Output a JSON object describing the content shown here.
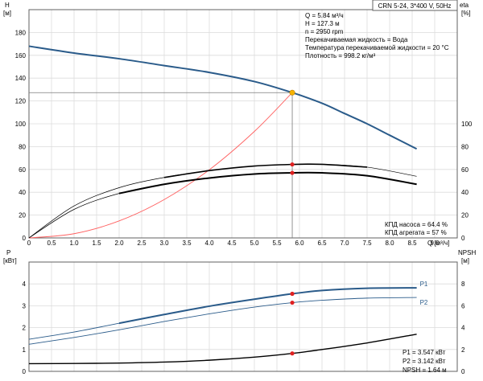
{
  "title_box": "CRN 5-24, 3*400 V, 50Hz",
  "colors": {
    "frame": "#606060",
    "pump_head": "#2a5b8a",
    "system_curve": "#ff6060",
    "eta": "#000000",
    "power_p1": "#2a5b8a",
    "power_p2": "#2a5b8a",
    "npsh": "#000000",
    "op_point_head": "#f5b400",
    "op_point": "#e02020"
  },
  "top_info": [
    "Q = 5.84 м³/ч",
    "H = 127.3 м",
    "n = 2950 rpm",
    "Перекачиваемая жидкость = Вода",
    "Температура перекачиваемой жидкости = 20 °C",
    "Плотность = 998.2 кг/м³"
  ],
  "eff_info": [
    "КПД насоса = 64.4 %",
    "КПД агрегата = 57 %"
  ],
  "bottom_info": [
    "P1 = 3.547 кВт",
    "P2 = 3.142 кВт",
    "NPSH = 1.64 м"
  ],
  "chart_data": [
    {
      "type": "line",
      "name": "head-efficiency",
      "xlabel": "Q [м³/ч]",
      "ylabel_left": "H [м]",
      "ylabel_right": "eta [%]",
      "xlim": [
        0,
        9.5
      ],
      "ylim_left": [
        0,
        200
      ],
      "ylim_right": [
        0,
        200
      ],
      "x_ticks": [
        "0",
        "0.5",
        "1.0",
        "1.5",
        "2.0",
        "2.5",
        "3.0",
        "3.5",
        "4.0",
        "4.5",
        "5.0",
        "5.5",
        "6.0",
        "6.5",
        "7.0",
        "7.5",
        "8.0",
        "8.5",
        "9.0"
      ],
      "y_ticks_left": [
        "0",
        "20",
        "40",
        "60",
        "80",
        "100",
        "120",
        "140",
        "160",
        "180"
      ],
      "y_ticks_right": [
        "0",
        "20",
        "40",
        "60",
        "80",
        "100"
      ],
      "grid": true,
      "series": [
        {
          "key": "head",
          "axis": "left",
          "x": [
            0,
            1,
            2,
            3,
            4,
            5,
            5.84,
            6.5,
            7,
            7.5,
            8,
            8.6
          ],
          "y": [
            168,
            162,
            157,
            151,
            145,
            137,
            127.3,
            118,
            109,
            100,
            90,
            78
          ]
        },
        {
          "key": "system",
          "axis": "left",
          "x": [
            0,
            1,
            2,
            3,
            4,
            5,
            5.84
          ],
          "y": [
            0,
            3.7,
            14.9,
            33.6,
            59.7,
            93.3,
            127.3
          ]
        },
        {
          "key": "eta_pump",
          "axis": "right",
          "x": [
            0,
            1,
            2,
            3,
            4,
            5,
            5.84,
            6.5,
            7.5,
            8.6
          ],
          "y": [
            0,
            28,
            44,
            53,
            59,
            63,
            64.4,
            64.5,
            62,
            54
          ]
        },
        {
          "key": "eta_unit",
          "axis": "right",
          "x": [
            0,
            1,
            2,
            3,
            4,
            5,
            5.84,
            6.5,
            7.5,
            8.6
          ],
          "y": [
            0,
            25,
            39,
            47,
            52.5,
            56,
            57,
            57,
            54.5,
            47
          ]
        }
      ],
      "points": [
        {
          "key": "op_head",
          "axis": "left",
          "x": 5.84,
          "y": 127.3
        },
        {
          "key": "op_eta_pump",
          "axis": "right",
          "x": 5.84,
          "y": 64.4
        },
        {
          "key": "op_eta_unit",
          "axis": "right",
          "x": 5.84,
          "y": 57
        }
      ]
    },
    {
      "type": "line",
      "name": "power-npsh",
      "ylabel_left": "P [кВт]",
      "ylabel_right": "NPSH [м]",
      "xlim": [
        0,
        9.5
      ],
      "ylim_left": [
        0,
        5
      ],
      "ylim_right": [
        0,
        10
      ],
      "y_ticks_left": [
        "0",
        "1",
        "2",
        "3",
        "4"
      ],
      "y_ticks_right": [
        "0",
        "2",
        "4",
        "6",
        "8"
      ],
      "grid": true,
      "series": [
        {
          "key": "p1",
          "label": "P1",
          "axis": "left",
          "x": [
            0,
            1,
            2,
            3,
            4,
            5,
            5.84,
            6.5,
            7.5,
            8.6
          ],
          "y": [
            1.47,
            1.8,
            2.2,
            2.6,
            2.98,
            3.3,
            3.547,
            3.7,
            3.8,
            3.82
          ]
        },
        {
          "key": "p2",
          "label": "P2",
          "axis": "left",
          "x": [
            0,
            1,
            2,
            3,
            4,
            5,
            5.84,
            6.5,
            7.5,
            8.6
          ],
          "y": [
            1.24,
            1.55,
            1.9,
            2.28,
            2.63,
            2.94,
            3.142,
            3.25,
            3.35,
            3.38
          ]
        },
        {
          "key": "npsh",
          "axis": "right",
          "x": [
            0,
            1,
            2,
            3,
            4,
            5,
            5.84,
            6.5,
            7.5,
            8.6
          ],
          "y": [
            0.7,
            0.72,
            0.76,
            0.85,
            1.02,
            1.3,
            1.64,
            2.0,
            2.6,
            3.4
          ]
        }
      ],
      "points": [
        {
          "key": "op_p1",
          "axis": "left",
          "x": 5.84,
          "y": 3.547
        },
        {
          "key": "op_p2",
          "axis": "left",
          "x": 5.84,
          "y": 3.142
        },
        {
          "key": "op_npsh",
          "axis": "right",
          "x": 5.84,
          "y": 1.64
        }
      ]
    }
  ]
}
